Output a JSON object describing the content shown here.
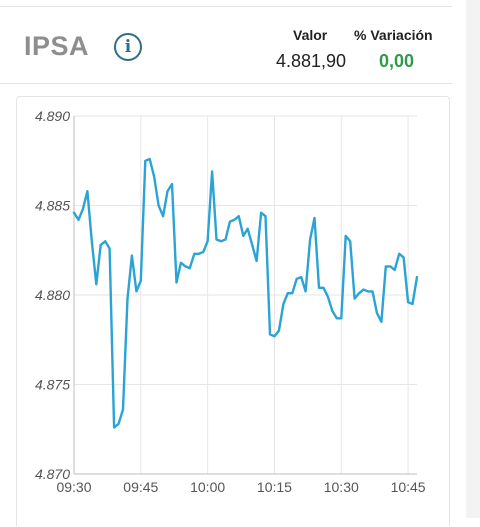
{
  "header": {
    "ticker": "IPSA",
    "info_icon": "info-icon",
    "valor_label": "Valor",
    "variacion_label": "% Variación",
    "valor": "4.881,90",
    "variacion": "0,00",
    "variacion_color": "#2e9a4a"
  },
  "chart_data": {
    "type": "line",
    "title": "",
    "xlabel": "",
    "ylabel": "",
    "ylim": [
      4870,
      4890
    ],
    "xlim": [
      "09:30",
      "10:47"
    ],
    "grid": true,
    "line_color": "#2ba3d4",
    "y_ticks": [
      "4.890",
      "4.885",
      "4.880",
      "4.875",
      "4.870"
    ],
    "x_ticks": [
      "09:30",
      "09:45",
      "10:00",
      "10:15",
      "10:30",
      "10:45"
    ],
    "x": [
      "09:30",
      "09:31",
      "09:32",
      "09:33",
      "09:34",
      "09:35",
      "09:36",
      "09:37",
      "09:38",
      "09:39",
      "09:40",
      "09:41",
      "09:42",
      "09:43",
      "09:44",
      "09:45",
      "09:46",
      "09:47",
      "09:48",
      "09:49",
      "09:50",
      "09:51",
      "09:52",
      "09:53",
      "09:54",
      "09:55",
      "09:56",
      "09:57",
      "09:58",
      "09:59",
      "10:00",
      "10:01",
      "10:02",
      "10:03",
      "10:04",
      "10:05",
      "10:06",
      "10:07",
      "10:08",
      "10:09",
      "10:10",
      "10:11",
      "10:12",
      "10:13",
      "10:14",
      "10:15",
      "10:16",
      "10:17",
      "10:18",
      "10:19",
      "10:20",
      "10:21",
      "10:22",
      "10:23",
      "10:24",
      "10:25",
      "10:26",
      "10:27",
      "10:28",
      "10:29",
      "10:30",
      "10:31",
      "10:32",
      "10:33",
      "10:34",
      "10:35",
      "10:36",
      "10:37",
      "10:38",
      "10:39",
      "10:40",
      "10:41",
      "10:42",
      "10:43",
      "10:44",
      "10:45",
      "10:46",
      "10:47"
    ],
    "values": [
      4884.6,
      4884.2,
      4884.8,
      4885.8,
      4883.0,
      4880.6,
      4882.8,
      4883.0,
      4882.6,
      4872.6,
      4872.8,
      4873.6,
      4879.8,
      4882.2,
      4880.2,
      4880.8,
      4887.5,
      4887.6,
      4886.6,
      4885.0,
      4884.4,
      4885.8,
      4886.2,
      4880.7,
      4881.8,
      4881.6,
      4881.5,
      4882.3,
      4882.3,
      4882.4,
      4883.0,
      4886.9,
      4883.1,
      4883.0,
      4883.1,
      4884.1,
      4884.2,
      4884.4,
      4883.3,
      4883.7,
      4882.8,
      4881.9,
      4884.6,
      4884.4,
      4877.8,
      4877.7,
      4878.0,
      4879.5,
      4880.1,
      4880.1,
      4880.9,
      4881.0,
      4880.2,
      4883.1,
      4884.3,
      4880.4,
      4880.4,
      4879.9,
      4879.1,
      4878.7,
      4878.7,
      4883.3,
      4883.0,
      4879.8,
      4880.1,
      4880.3,
      4880.2,
      4880.2,
      4879.0,
      4878.5,
      4881.6,
      4881.6,
      4881.4,
      4882.3,
      4882.1,
      4879.6,
      4879.5,
      4881.0
    ]
  }
}
